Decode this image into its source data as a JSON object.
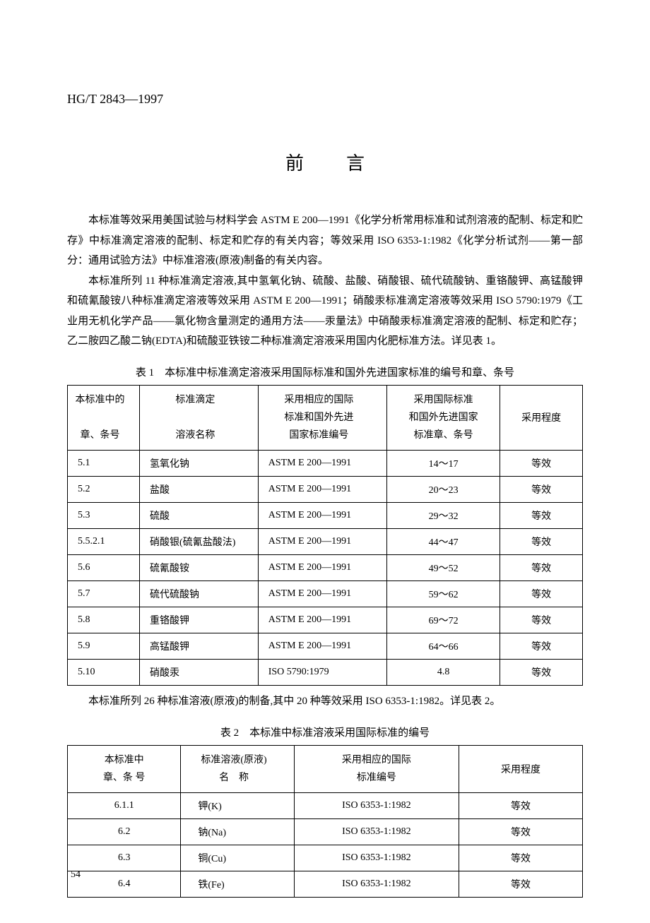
{
  "header_code": "HG/T 2843—1997",
  "title": "前言",
  "para1": "本标准等效采用美国试验与材料学会 ASTM E 200—1991《化学分析常用标准和试剂溶液的配制、标定和贮存》中标准滴定溶液的配制、标定和贮存的有关内容；等效采用 ISO 6353-1:1982《化学分析试剂——第一部分：通用试验方法》中标准溶液(原液)制备的有关内容。",
  "para2": "本标准所列 11 种标准滴定溶液,其中氢氧化钠、硫酸、盐酸、硝酸银、硫代硫酸钠、重铬酸钾、高锰酸钾和硫氰酸铵八种标准滴定溶液等效采用 ASTM E 200—1991；硝酸汞标准滴定溶液等效采用 ISO 5790:1979《工业用无机化学产品——氯化物含量测定的通用方法——汞量法》中硝酸汞标准滴定溶液的配制、标定和贮存；乙二胺四乙酸二钠(EDTA)和硫酸亚铁铵二种标准滴定溶液采用国内化肥标准方法。详见表 1。",
  "table1_caption": "表 1　本标准中标准滴定溶液采用国际标准和国外先进国家标准的编号和章、条号",
  "table1": {
    "headers": {
      "h1_line1": "本标准中的",
      "h1_line2": "章、条号",
      "h2_line1": "标准滴定",
      "h2_line2": "溶液名称",
      "h3_line1": "采用相应的国际",
      "h3_line2": "标准和国外先进",
      "h3_line3": "国家标准编号",
      "h4_line1": "采用国际标准",
      "h4_line2": "和国外先进国家",
      "h4_line3": "标准章、条号",
      "h5": "采用程度"
    },
    "rows": [
      {
        "c1": "5.1",
        "c2": "氢氧化钠",
        "c3": "ASTM E 200—1991",
        "c4": "14～17",
        "c5": "等效"
      },
      {
        "c1": "5.2",
        "c2": "盐酸",
        "c3": "ASTM E 200—1991",
        "c4": "20～23",
        "c5": "等效"
      },
      {
        "c1": "5.3",
        "c2": "硫酸",
        "c3": "ASTM E 200—1991",
        "c4": "29～32",
        "c5": "等效"
      },
      {
        "c1": "5.5.2.1",
        "c2": "硝酸银(硫氰盐酸法)",
        "c3": "ASTM E 200—1991",
        "c4": "44～47",
        "c5": "等效"
      },
      {
        "c1": "5.6",
        "c2": "硫氰酸铵",
        "c3": "ASTM E 200—1991",
        "c4": "49～52",
        "c5": "等效"
      },
      {
        "c1": "5.7",
        "c2": "硫代硫酸钠",
        "c3": "ASTM E 200—1991",
        "c4": "59～62",
        "c5": "等效"
      },
      {
        "c1": "5.8",
        "c2": "重铬酸钾",
        "c3": "ASTM E 200—1991",
        "c4": "69～72",
        "c5": "等效"
      },
      {
        "c1": "5.9",
        "c2": "高锰酸钾",
        "c3": "ASTM E 200—1991",
        "c4": "64～66",
        "c5": "等效"
      },
      {
        "c1": "5.10",
        "c2": "硝酸汞",
        "c3": "ISO 5790:1979",
        "c4": "4.8",
        "c5": "等效"
      }
    ]
  },
  "intertext": "本标准所列 26 种标准溶液(原液)的制备,其中 20 种等效采用 ISO 6353-1:1982。详见表 2。",
  "table2_caption": "表 2　本标准中标准溶液采用国际标准的编号",
  "table2": {
    "headers": {
      "h1_line1": "本标准中",
      "h1_line2": "章、条 号",
      "h2_line1": "标准溶液(原液)",
      "h2_line2": "名　称",
      "h3_line1": "采用相应的国际",
      "h3_line2": "标准编号",
      "h4": "采用程度"
    },
    "rows": [
      {
        "c1": "6.1.1",
        "c2": "钾(K)",
        "c3": "ISO 6353-1:1982",
        "c4": "等效"
      },
      {
        "c1": "6.2",
        "c2": "钠(Na)",
        "c3": "ISO 6353-1:1982",
        "c4": "等效"
      },
      {
        "c1": "6.3",
        "c2": "铜(Cu)",
        "c3": "ISO 6353-1:1982",
        "c4": "等效"
      },
      {
        "c1": "6.4",
        "c2": "铁(Fe)",
        "c3": "ISO 6353-1:1982",
        "c4": "等效"
      }
    ]
  },
  "page_number": "54"
}
